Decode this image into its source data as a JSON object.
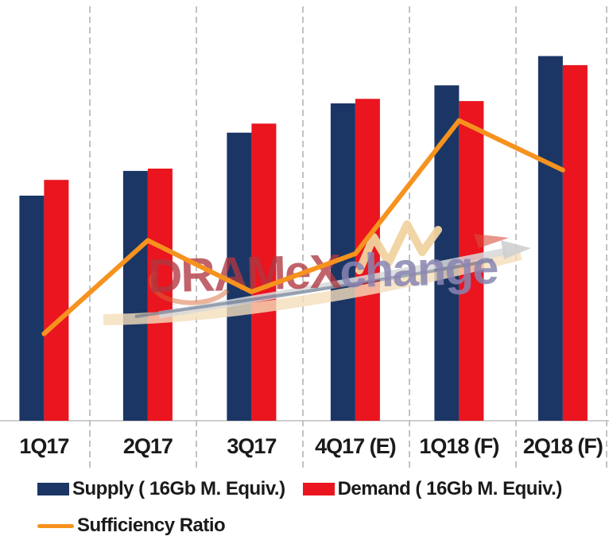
{
  "chart_data": {
    "type": "bar",
    "subtype": "grouped-bars-with-line-overlay",
    "title": "",
    "xlabel": "",
    "ylabel": "",
    "categories": [
      "1Q17",
      "2Q17",
      "3Q17",
      "4Q17 (E)",
      "1Q18 (F)",
      "2Q18 (F)"
    ],
    "series": [
      {
        "name": "Supply ( 16Gb M. Equiv.)",
        "type": "bar",
        "color": "#1b3665",
        "values": [
          100,
          111,
          128,
          141,
          149,
          162
        ],
        "value_scale_note": "relative index, 1Q17 supply = 100 (no value axis shown in image)"
      },
      {
        "name": "Demand ( 16Gb M. Equiv.)",
        "type": "bar",
        "color": "#ea151f",
        "values": [
          107,
          112,
          132,
          143,
          142,
          158
        ],
        "value_scale_note": "relative index, 1Q17 supply = 100 (no value axis shown in image)"
      },
      {
        "name": "Sufficiency Ratio",
        "type": "line",
        "color": "#f6921e",
        "values": [
          0.94,
          0.989,
          0.962,
          0.982,
          1.052,
          1.026
        ],
        "value_scale_note": "estimated supply/demand ratio (no value axis shown in image)"
      }
    ],
    "grid": "vertical dashed separators between categories; no horizontal gridlines; no y-axis labels",
    "legend_position": "bottom-left"
  },
  "colors": {
    "gridline": "#a9a9a9",
    "axis": "#bfbfbf",
    "text": "#1a1a1a"
  },
  "watermark": {
    "part1": "DRAMeX",
    "part2": "change",
    "color1": "#b03842",
    "color2": "#8985b2"
  }
}
